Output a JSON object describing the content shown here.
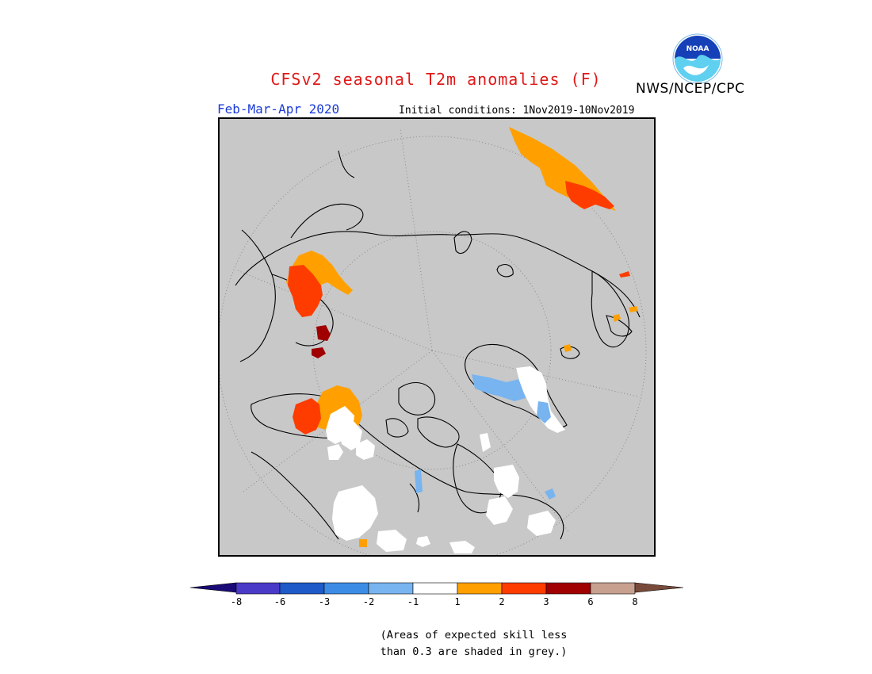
{
  "header": {
    "title": "CFSv2 seasonal T2m anomalies (F)",
    "title_color": "#e01818",
    "agency": "NWS/NCEP/CPC",
    "logo_text": "NOAA",
    "period": "Feb-Mar-Apr 2020",
    "initial_conditions": "Initial conditions: 1Nov2019-10Nov2019"
  },
  "legend": {
    "tick_labels": [
      "-8",
      "-6",
      "-3",
      "-2",
      "-1",
      "1",
      "2",
      "3",
      "6",
      "8"
    ],
    "colors": {
      "below_min": "#190a78",
      "n8_n6": "#4a3ac8",
      "n6_n3": "#1e5ac8",
      "n3_n2": "#3c8ce6",
      "n2_n1": "#78b4f0",
      "n1_p1": "#ffffff",
      "p1_p2": "#ffa000",
      "p2_p3": "#ff3c00",
      "p3_p6": "#a00000",
      "p6_p8": "#c8a090",
      "above_max": "#784a3a"
    }
  },
  "footnote": {
    "line1": "(Areas of expected skill less",
    "line2": "than 0.3 are shaded in grey.)"
  },
  "map": {
    "background_color": "#c8c8c8",
    "projection": "north-polar-stereographic"
  }
}
